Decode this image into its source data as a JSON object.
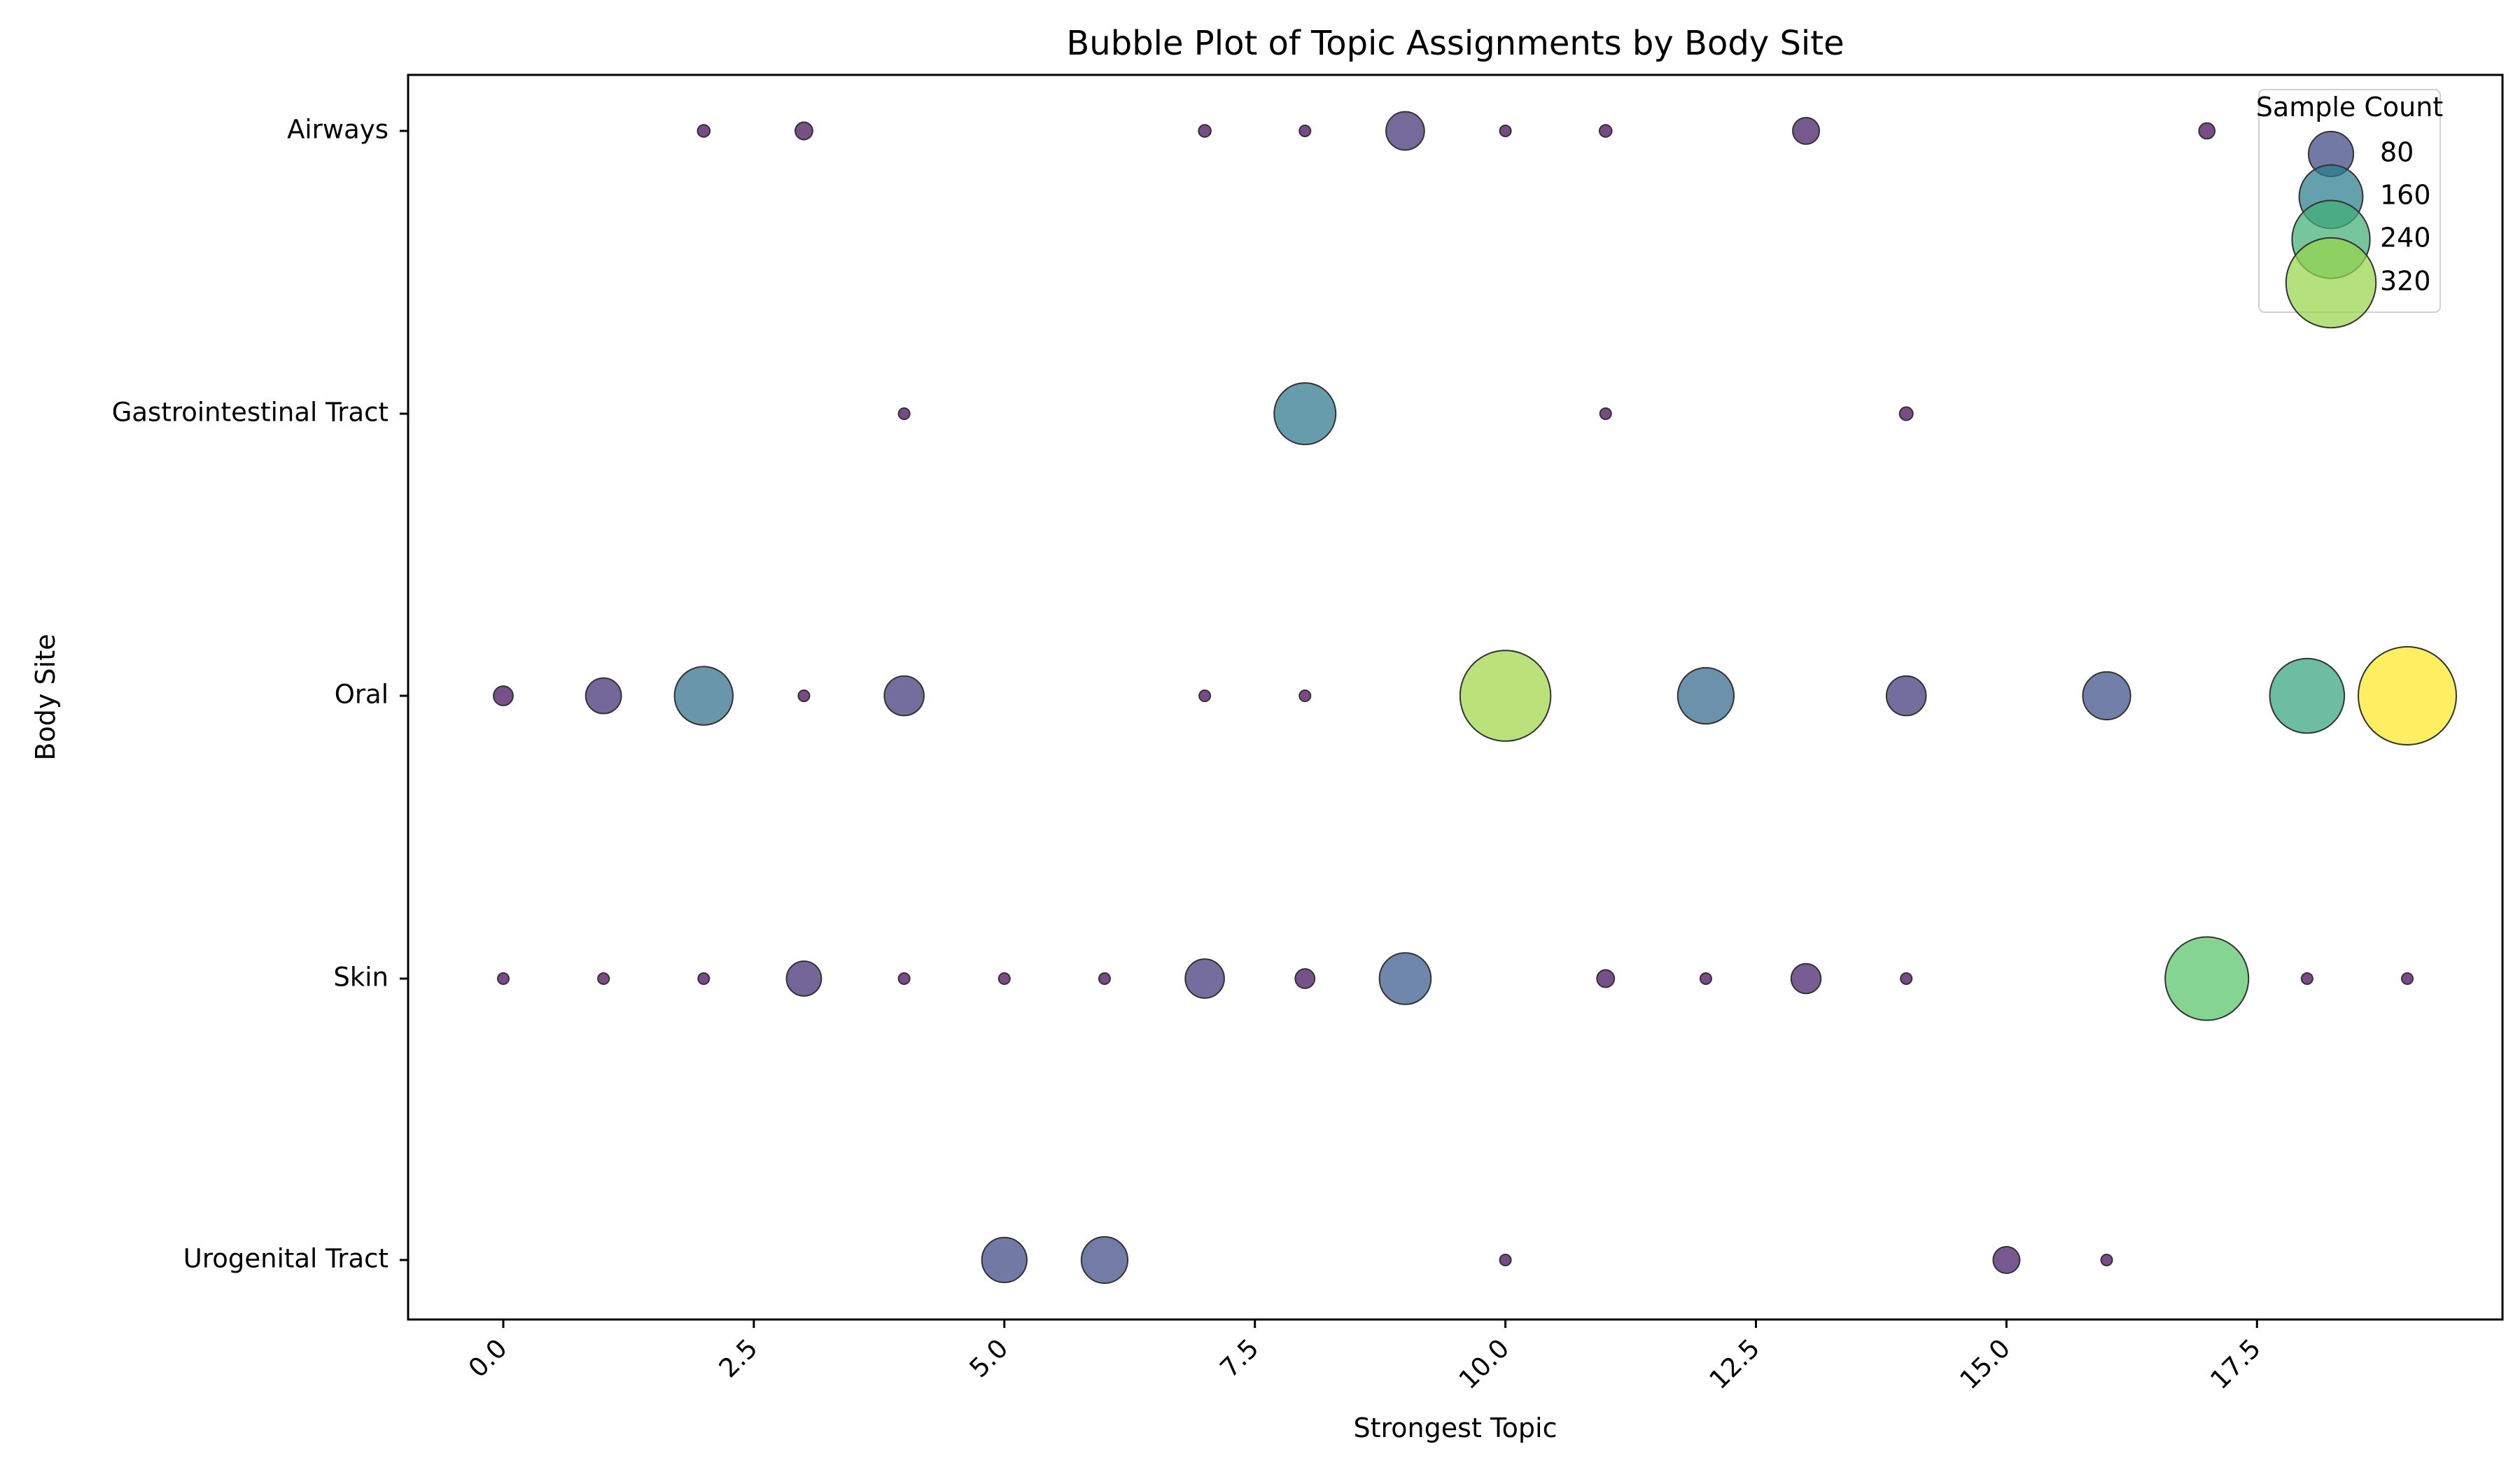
{
  "chart_data": {
    "type": "scatter",
    "title": "Bubble Plot of Topic Assignments by Body Site",
    "xlabel": "Strongest Topic",
    "ylabel": "Body Site",
    "xlim": [
      -0.95,
      19.95
    ],
    "grid": false,
    "categories": [
      "Airways",
      "Gastrointestinal Tract",
      "Oral",
      "Skin",
      "Urogenital Tract"
    ],
    "x_ticks": [
      0,
      2.5,
      5,
      7.5,
      10,
      12.5,
      15,
      17.5
    ],
    "x_tick_labels": [
      "0.0",
      "2.5",
      "5.0",
      "7.5",
      "10.0",
      "12.5",
      "15.0",
      "17.5"
    ],
    "size_scale_max": 380,
    "points": [
      {
        "site": "Airways",
        "x": 2,
        "count": 6
      },
      {
        "site": "Airways",
        "x": 3,
        "count": 12
      },
      {
        "site": "Airways",
        "x": 7,
        "count": 6
      },
      {
        "site": "Airways",
        "x": 8,
        "count": 5
      },
      {
        "site": "Airways",
        "x": 9,
        "count": 58
      },
      {
        "site": "Airways",
        "x": 10,
        "count": 5
      },
      {
        "site": "Airways",
        "x": 11,
        "count": 6
      },
      {
        "site": "Airways",
        "x": 13,
        "count": 28
      },
      {
        "site": "Airways",
        "x": 17,
        "count": 10
      },
      {
        "site": "Gastrointestinal Tract",
        "x": 4,
        "count": 5
      },
      {
        "site": "Gastrointestinal Tract",
        "x": 8,
        "count": 150
      },
      {
        "site": "Gastrointestinal Tract",
        "x": 11,
        "count": 5
      },
      {
        "site": "Gastrointestinal Tract",
        "x": 14,
        "count": 7
      },
      {
        "site": "Oral",
        "x": 0,
        "count": 15
      },
      {
        "site": "Oral",
        "x": 1,
        "count": 50
      },
      {
        "site": "Oral",
        "x": 2,
        "count": 135
      },
      {
        "site": "Oral",
        "x": 3,
        "count": 5
      },
      {
        "site": "Oral",
        "x": 4,
        "count": 62
      },
      {
        "site": "Oral",
        "x": 7,
        "count": 5
      },
      {
        "site": "Oral",
        "x": 8,
        "count": 5
      },
      {
        "site": "Oral",
        "x": 10,
        "count": 325
      },
      {
        "site": "Oral",
        "x": 12,
        "count": 125
      },
      {
        "site": "Oral",
        "x": 14,
        "count": 62
      },
      {
        "site": "Oral",
        "x": 16,
        "count": 90
      },
      {
        "site": "Oral",
        "x": 18,
        "count": 220
      },
      {
        "site": "Oral",
        "x": 19,
        "count": 380
      },
      {
        "site": "Skin",
        "x": 0,
        "count": 5
      },
      {
        "site": "Skin",
        "x": 1,
        "count": 5
      },
      {
        "site": "Skin",
        "x": 2,
        "count": 5
      },
      {
        "site": "Skin",
        "x": 3,
        "count": 48
      },
      {
        "site": "Skin",
        "x": 4,
        "count": 5
      },
      {
        "site": "Skin",
        "x": 5,
        "count": 5
      },
      {
        "site": "Skin",
        "x": 6,
        "count": 5
      },
      {
        "site": "Skin",
        "x": 7,
        "count": 60
      },
      {
        "site": "Skin",
        "x": 8,
        "count": 15
      },
      {
        "site": "Skin",
        "x": 9,
        "count": 105
      },
      {
        "site": "Skin",
        "x": 11,
        "count": 12
      },
      {
        "site": "Skin",
        "x": 12,
        "count": 5
      },
      {
        "site": "Skin",
        "x": 13,
        "count": 35
      },
      {
        "site": "Skin",
        "x": 14,
        "count": 5
      },
      {
        "site": "Skin",
        "x": 17,
        "count": 275
      },
      {
        "site": "Skin",
        "x": 18,
        "count": 5
      },
      {
        "site": "Skin",
        "x": 19,
        "count": 5
      },
      {
        "site": "Urogenital Tract",
        "x": 5,
        "count": 80
      },
      {
        "site": "Urogenital Tract",
        "x": 6,
        "count": 85
      },
      {
        "site": "Urogenital Tract",
        "x": 10,
        "count": 5
      },
      {
        "site": "Urogenital Tract",
        "x": 15,
        "count": 28
      },
      {
        "site": "Urogenital Tract",
        "x": 16,
        "count": 5
      }
    ],
    "legend": {
      "title": "Sample Count",
      "placement": "top-right",
      "items": [
        {
          "label": "80",
          "count": 80
        },
        {
          "label": "160",
          "count": 160
        },
        {
          "label": "240",
          "count": 240
        },
        {
          "label": "320",
          "count": 320
        }
      ]
    },
    "colors": {
      "edge": "#333333",
      "viridis": [
        "#440154",
        "#3b528b",
        "#21918c",
        "#5ec962",
        "#fde725"
      ]
    }
  }
}
